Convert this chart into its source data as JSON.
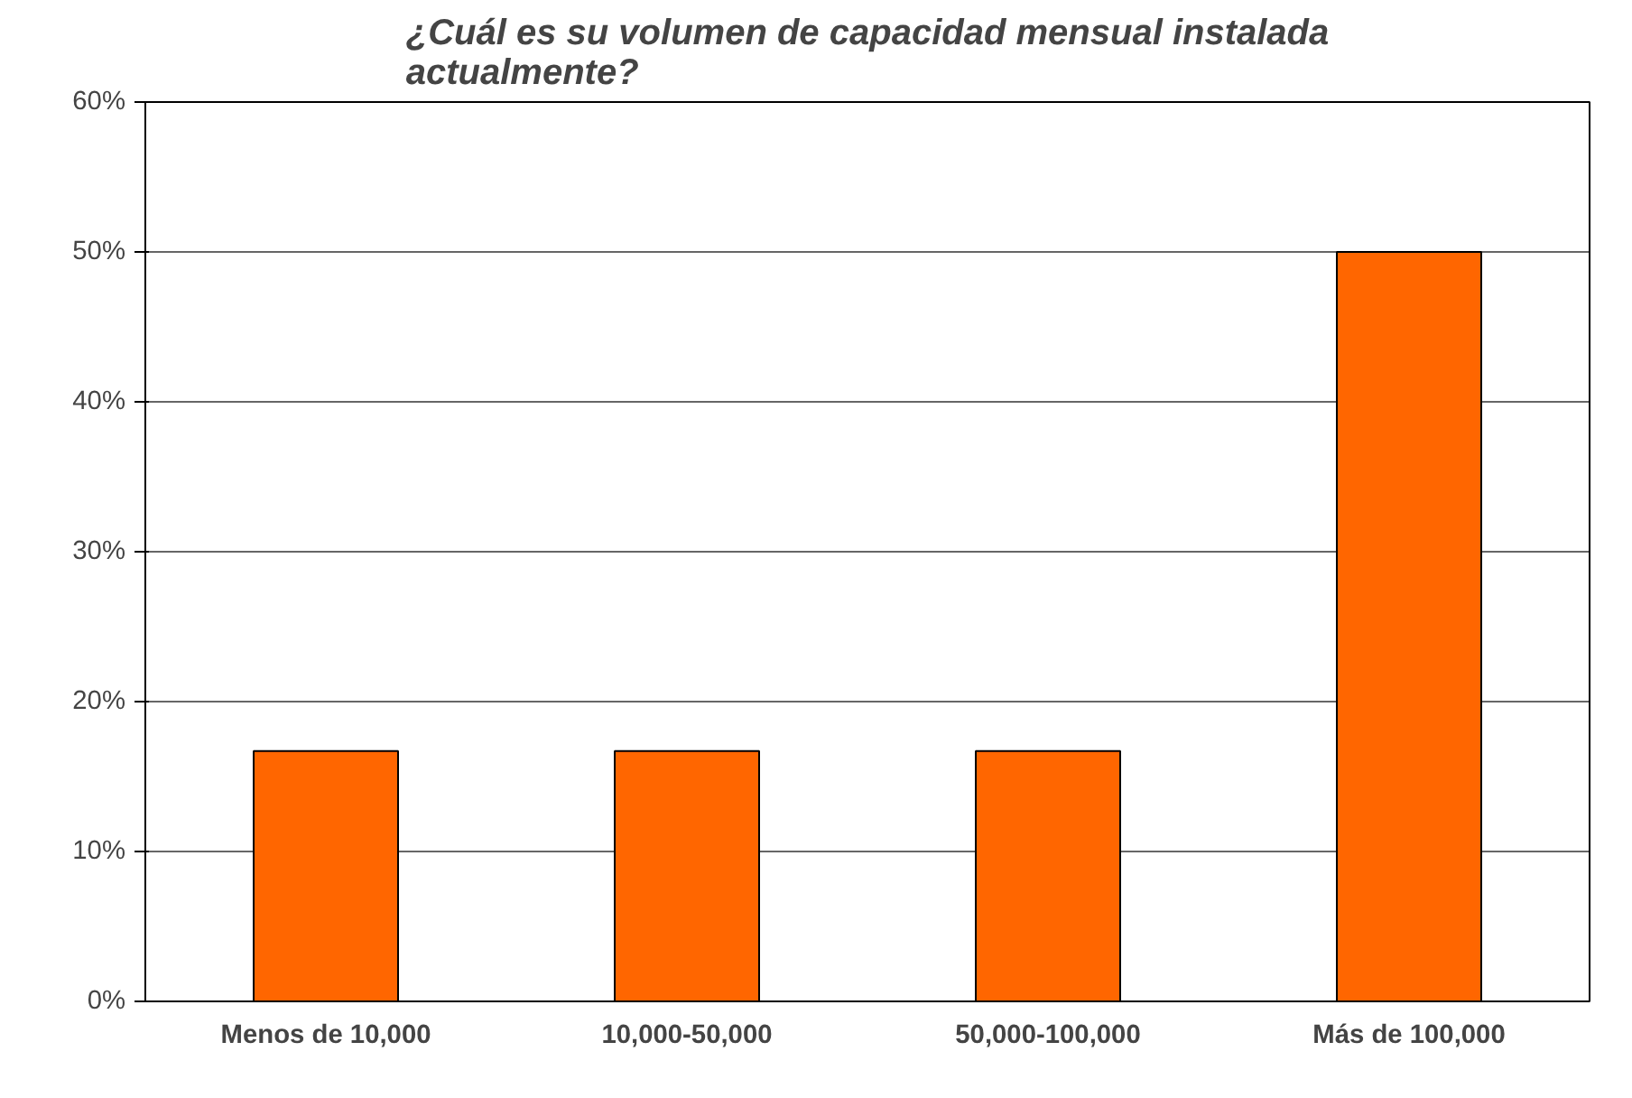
{
  "chart_data": {
    "type": "bar",
    "title": "¿Cuál es su volumen de capacidad mensual instalada actualmente?",
    "categories": [
      "Menos de 10,000",
      "10,000-50,000",
      "50,000-100,000",
      "Más de 100,000"
    ],
    "values": [
      16.7,
      16.7,
      16.7,
      50
    ],
    "color": "#ff6600",
    "ylim": [
      0,
      60
    ],
    "yticks": [
      {
        "value": 0,
        "label": "0%"
      },
      {
        "value": 10,
        "label": "10%"
      },
      {
        "value": 20,
        "label": "20%"
      },
      {
        "value": 30,
        "label": "30%"
      },
      {
        "value": 40,
        "label": "40%"
      },
      {
        "value": 50,
        "label": "50%"
      },
      {
        "value": 60,
        "label": "60%"
      }
    ],
    "grid": "y"
  }
}
